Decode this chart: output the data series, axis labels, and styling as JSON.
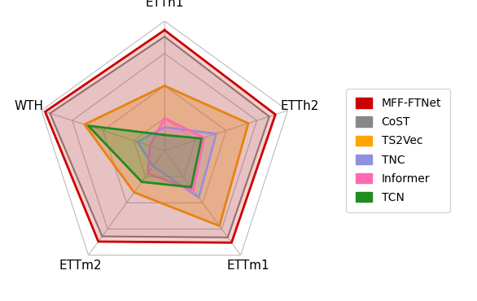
{
  "categories": [
    "ETTh1",
    "ETTh2",
    "ETTm1",
    "ETTm2",
    "WTH"
  ],
  "models": {
    "MFF-FTNet": {
      "values": [
        0.93,
        0.9,
        0.88,
        0.87,
        0.97
      ],
      "color": "#cc0000",
      "linewidth": 2.0,
      "alpha_fill": 0.18,
      "zorder": 5
    },
    "CoST": {
      "values": [
        0.88,
        0.85,
        0.83,
        0.82,
        0.93
      ],
      "color": "#888888",
      "linewidth": 1.5,
      "alpha_fill": 0.15,
      "zorder": 4
    },
    "TS2Vec": {
      "values": [
        0.5,
        0.68,
        0.72,
        0.4,
        0.65
      ],
      "color": "#FFA500",
      "linewidth": 2.0,
      "alpha_fill": 0.3,
      "zorder": 3
    },
    "TNC": {
      "values": [
        0.18,
        0.42,
        0.45,
        0.15,
        0.22
      ],
      "color": "#9090e0",
      "linewidth": 1.8,
      "alpha_fill": 0.2,
      "zorder": 6
    },
    "Informer": {
      "values": [
        0.25,
        0.32,
        0.38,
        0.22,
        0.12
      ],
      "color": "#ff69b4",
      "linewidth": 2.0,
      "alpha_fill": 0.25,
      "zorder": 6
    },
    "TCN": {
      "values": [
        0.12,
        0.3,
        0.35,
        0.3,
        0.62
      ],
      "color": "#228B22",
      "linewidth": 2.0,
      "alpha_fill": 0.25,
      "zorder": 6
    }
  },
  "n_gridlines": 4,
  "gridline_color": "#bbbbbb",
  "axis_color": "#bbbbbb",
  "background_color": "#ffffff",
  "legend_fontsize": 10,
  "label_fontsize": 11
}
